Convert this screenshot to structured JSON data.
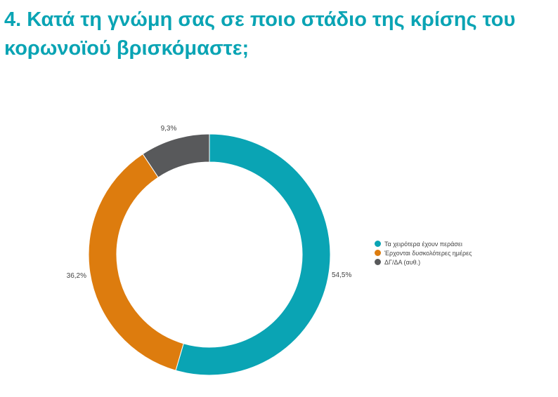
{
  "chart_data": {
    "type": "pie",
    "title": "4. Κατά τη γνώμη σας σε ποιο στάδιο της κρίσης του κορωνοϊού βρισκόμαστε;",
    "donut": true,
    "categories": [
      "Τα χειρότερα έχουν περάσει",
      "Έρχονται δυσκολότερες ημέρες",
      "ΔΓ/ΔΑ (αυθ.)"
    ],
    "values": [
      54.5,
      36.2,
      9.3
    ],
    "labels": [
      "54,5%",
      "36,2%",
      "9,3%"
    ],
    "colors": [
      "#0aa4b4",
      "#dd7c0e",
      "#58595b"
    ],
    "legend_position": "right"
  }
}
